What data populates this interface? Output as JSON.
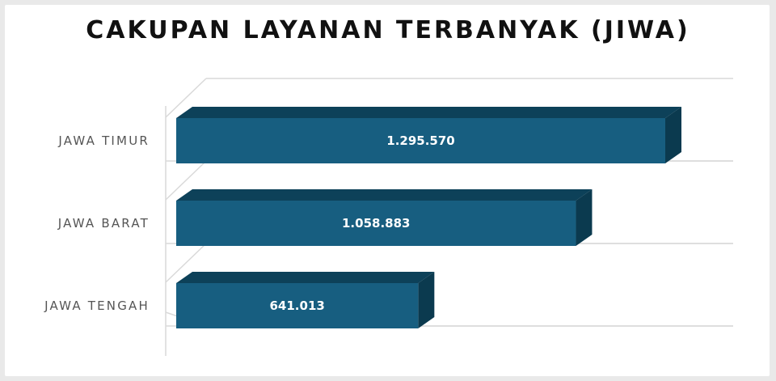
{
  "chart_data": {
    "type": "bar",
    "orientation": "horizontal",
    "style": "3d",
    "title": "CAKUPAN LAYANAN TERBANYAK (JIWA)",
    "categories": [
      "JAWA TIMUR",
      "JAWA BARAT",
      "JAWA TENGAH"
    ],
    "values": [
      1295570,
      1058883,
      641013
    ],
    "value_labels": [
      "1.295.570",
      "1.058.883",
      "641.013"
    ],
    "xlim": [
      0,
      1450000
    ],
    "grid": true,
    "legend": "none",
    "colors": {
      "bar_front": "#175e80",
      "bar_top": "#0d4159",
      "bar_side": "#0b3a4f",
      "gridline": "#d9d9d9",
      "background": "#ffffff"
    }
  }
}
